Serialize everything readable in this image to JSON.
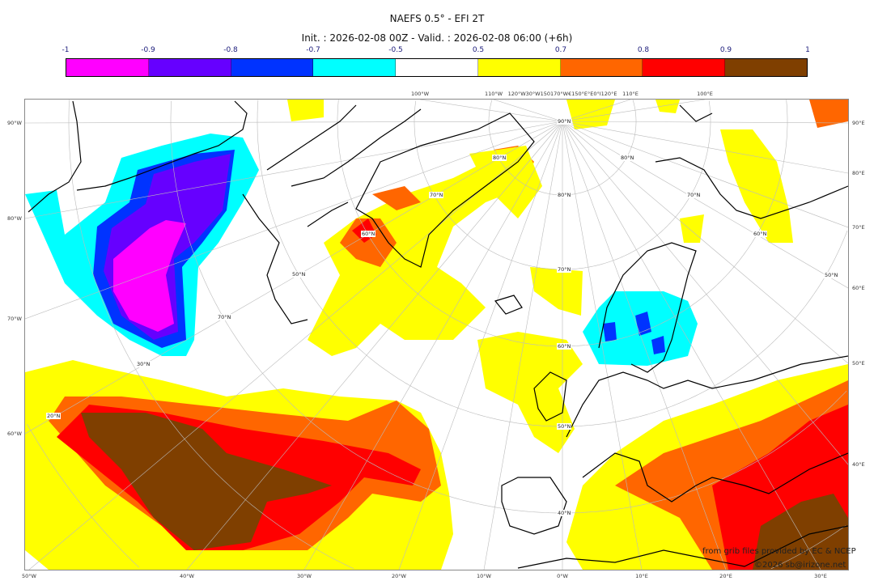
{
  "title": "NAEFS 0.5° - EFI 2T",
  "subtitle": "Init. : 2026-02-08 00Z - Valid. : 2026-02-08 06:00 (+6h)",
  "colorbar": {
    "ticks": [
      "-1",
      "-0.9",
      "-0.8",
      "-0.7",
      "-0.5",
      "0.5",
      "0.7",
      "0.8",
      "0.9",
      "1"
    ],
    "colors": [
      "#ff00ff",
      "#6600ff",
      "#0033ff",
      "#00ffff",
      "#ffffff",
      "#ffff00",
      "#ff6600",
      "#ff0000",
      "#7f3f00"
    ]
  },
  "axes": {
    "left": [
      "90°W",
      "80°W",
      "70°W",
      "60°W"
    ],
    "right": [
      "90°E",
      "80°E",
      "70°E",
      "60°E",
      "50°E",
      "40°E"
    ],
    "bottom": [
      "50°W",
      "40°W",
      "30°W",
      "20°W",
      "10°W",
      "0°W",
      "10°E",
      "20°E",
      "30°E"
    ],
    "top": [
      "100°W",
      "110°W",
      "120°W30°W150170°W€150°E°E0°I120°E",
      "110°E",
      "100°E"
    ]
  },
  "lat_labels": [
    "90°N",
    "80°N",
    "70°N",
    "60°N",
    "50°N",
    "40°N",
    "30°N",
    "20°N",
    "70°N",
    "60°N",
    "50°N",
    "80°N",
    "70°N",
    "60°N",
    "50°N",
    "40°N",
    "80°N",
    "70°N",
    "60°N",
    "50°N"
  ],
  "credits": {
    "source": "from grib files provided by EC & NCEP",
    "copyright": "©2026 sb@irizone.net"
  }
}
